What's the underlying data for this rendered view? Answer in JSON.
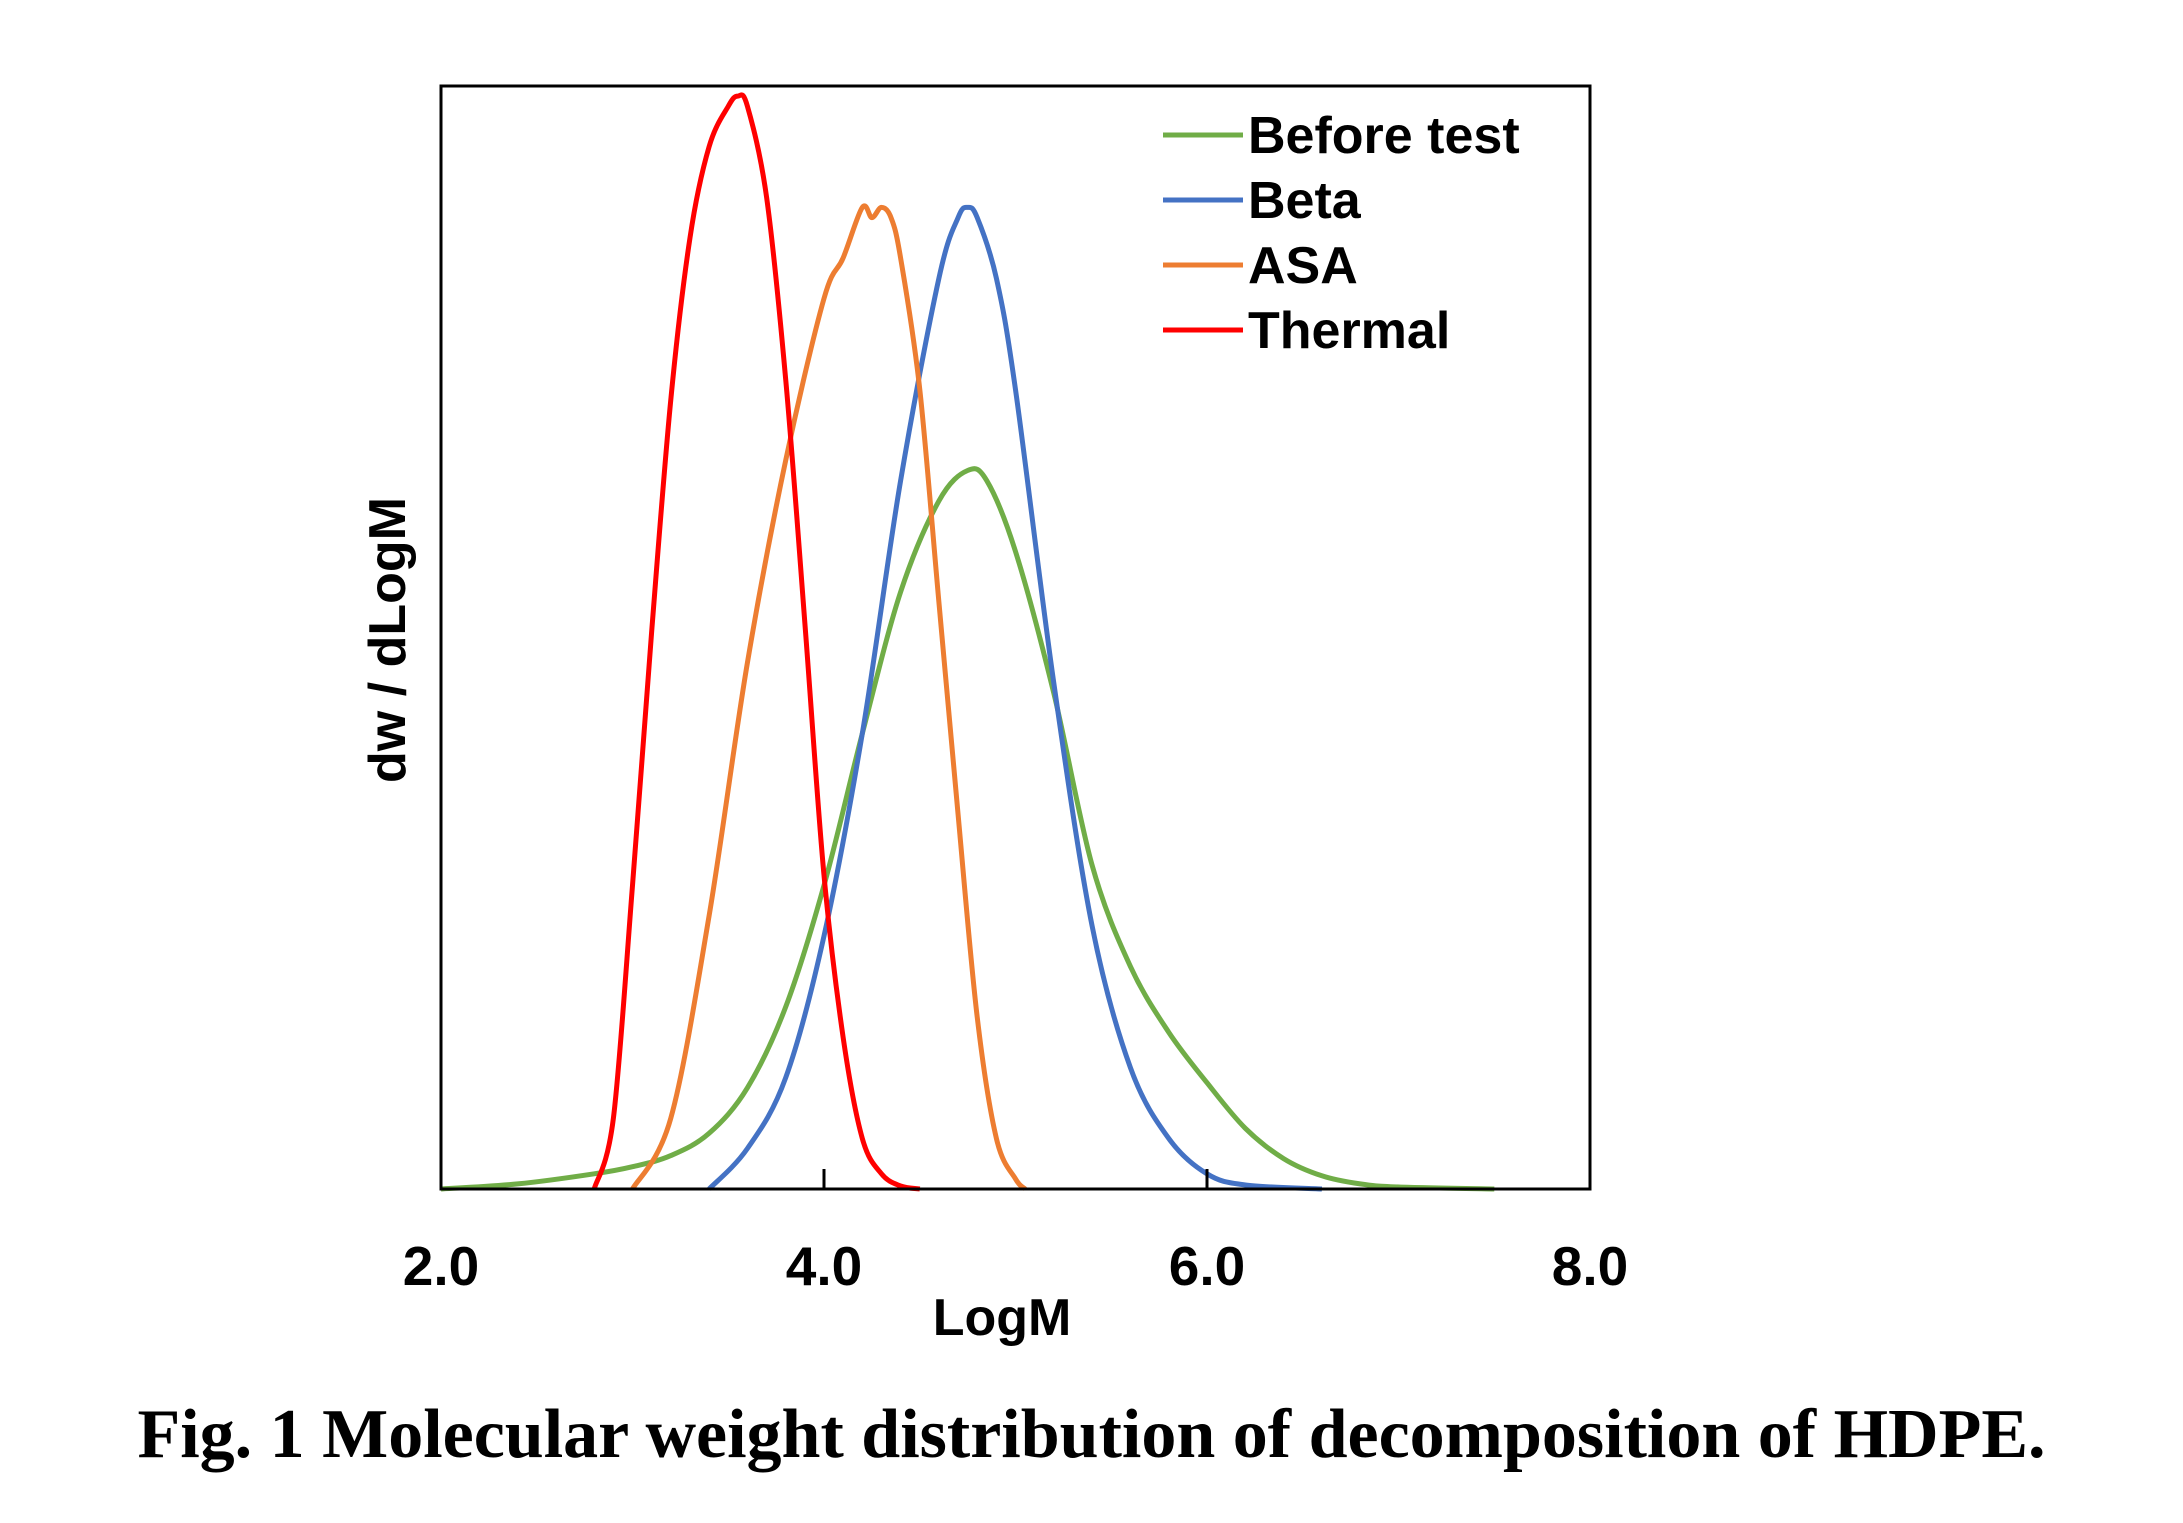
{
  "caption": "Fig. 1 Molecular weight distribution of decomposition of HDPE.",
  "chart_data": {
    "type": "line",
    "xlabel": "LogM",
    "ylabel": "dw / dLogM",
    "xlim": [
      2.0,
      8.0
    ],
    "ylim": [
      0,
      1.09
    ],
    "xticks": [
      "2.0",
      "4.0",
      "6.0",
      "8.0"
    ],
    "xtick_values": [
      2.0,
      4.0,
      6.0,
      8.0
    ],
    "y_tick_labels_shown": false,
    "grid": false,
    "legend_position": "top-right",
    "series": [
      {
        "name": "Before test",
        "color": "#70ad47",
        "x": [
          2.0,
          2.4,
          2.8,
          3.0,
          3.2,
          3.4,
          3.6,
          3.8,
          4.0,
          4.2,
          4.4,
          4.6,
          4.75,
          4.85,
          5.0,
          5.2,
          5.4,
          5.6,
          5.8,
          6.0,
          6.2,
          6.4,
          6.6,
          6.8,
          7.0,
          7.5
        ],
        "y": [
          0.0,
          0.005,
          0.015,
          0.022,
          0.033,
          0.055,
          0.1,
          0.18,
          0.3,
          0.45,
          0.59,
          0.68,
          0.71,
          0.7,
          0.63,
          0.49,
          0.32,
          0.22,
          0.155,
          0.105,
          0.06,
          0.03,
          0.013,
          0.005,
          0.002,
          0.0
        ]
      },
      {
        "name": "Beta",
        "color": "#4472c4",
        "x": [
          3.4,
          3.6,
          3.8,
          4.0,
          4.2,
          4.4,
          4.6,
          4.7,
          4.75,
          4.8,
          4.9,
          5.0,
          5.2,
          5.4,
          5.6,
          5.8,
          6.0,
          6.2,
          6.6
        ],
        "y": [
          0.0,
          0.04,
          0.11,
          0.25,
          0.45,
          0.7,
          0.9,
          0.96,
          0.97,
          0.96,
          0.9,
          0.79,
          0.5,
          0.26,
          0.12,
          0.05,
          0.015,
          0.004,
          0.0
        ]
      },
      {
        "name": "ASA",
        "color": "#ed7d31",
        "x": [
          3.0,
          3.2,
          3.4,
          3.6,
          3.8,
          4.0,
          4.1,
          4.2,
          4.25,
          4.3,
          4.35,
          4.4,
          4.5,
          4.6,
          4.7,
          4.8,
          4.9,
          5.0,
          5.05
        ],
        "y": [
          0.0,
          0.07,
          0.27,
          0.52,
          0.72,
          0.88,
          0.92,
          0.97,
          0.96,
          0.97,
          0.96,
          0.92,
          0.79,
          0.58,
          0.37,
          0.17,
          0.05,
          0.01,
          0.0
        ]
      },
      {
        "name": "Thermal",
        "color": "#ff0000",
        "x": [
          2.8,
          2.9,
          3.0,
          3.1,
          3.2,
          3.3,
          3.4,
          3.5,
          3.55,
          3.6,
          3.7,
          3.8,
          3.9,
          4.0,
          4.1,
          4.2,
          4.3,
          4.4,
          4.5
        ],
        "y": [
          0.0,
          0.07,
          0.3,
          0.55,
          0.78,
          0.94,
          1.03,
          1.07,
          1.08,
          1.07,
          0.98,
          0.8,
          0.56,
          0.31,
          0.15,
          0.05,
          0.015,
          0.003,
          0.0
        ]
      }
    ]
  }
}
